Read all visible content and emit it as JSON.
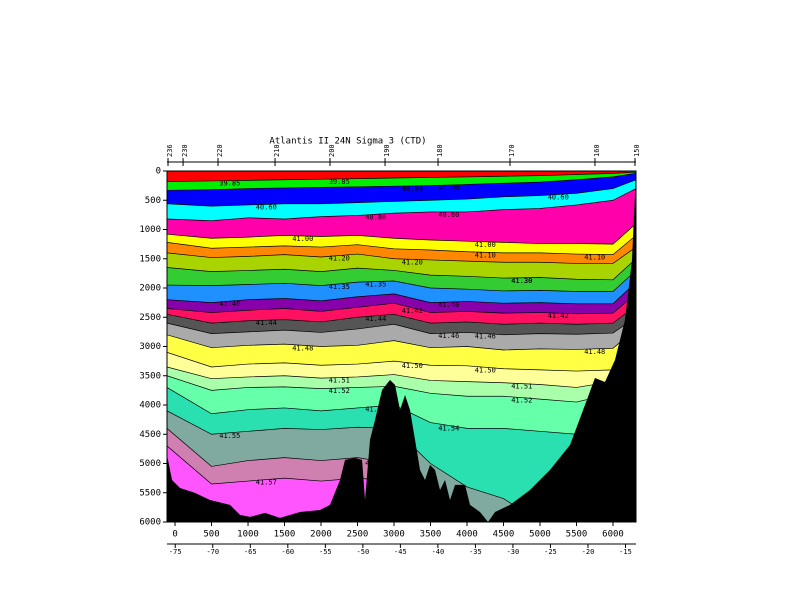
{
  "chart_data": {
    "type": "contour",
    "title": "Atlantis II 24N Sigma 3 (CTD)",
    "xlim": [
      -110,
      6315
    ],
    "xticks": [
      0,
      500,
      1000,
      1500,
      2000,
      2500,
      3000,
      3500,
      4000,
      4500,
      5000,
      5500,
      6000
    ],
    "ylim": [
      0,
      6000
    ],
    "yticks": [
      0,
      500,
      1000,
      1500,
      2000,
      2500,
      3000,
      3500,
      4000,
      4500,
      5000,
      5500,
      6000
    ],
    "y_inverted": true,
    "x2lim": [
      -76.1,
      -13.6
    ],
    "x2ticks": [
      -75,
      -70,
      -65,
      -60,
      -55,
      -50,
      -45,
      -40,
      -35,
      -30,
      -25,
      -20,
      -15
    ],
    "stations": {
      "x": [
        -96,
        110,
        589,
        1370,
        2123,
        2877,
        3603,
        4589,
        5753,
        6301
      ],
      "labels": [
        "236",
        "230",
        "220",
        "210",
        "200",
        "190",
        "180",
        "170",
        "160",
        "150"
      ]
    },
    "top_color": "#ff0000",
    "x": [
      -110,
      500,
      1000,
      1500,
      2000,
      2500,
      3000,
      3500,
      4000,
      4500,
      5000,
      5500,
      6000,
      6315
    ],
    "levels": [
      {
        "value": 39.85,
        "label": "39.85",
        "color": "#00ee00",
        "depths": [
          180,
          170,
          160,
          150,
          140,
          130,
          120,
          110,
          100,
          90,
          80,
          60,
          40,
          20
        ]
      },
      {
        "value": 40.0,
        "label": "40.00",
        "color": "#0000ff",
        "depths": [
          330,
          320,
          300,
          290,
          280,
          270,
          260,
          250,
          230,
          210,
          190,
          150,
          100,
          40
        ]
      },
      {
        "value": 40.6,
        "label": "40.60",
        "color": "#00ffff",
        "depths": [
          560,
          600,
          580,
          560,
          560,
          540,
          520,
          500,
          480,
          440,
          420,
          380,
          300,
          150
        ]
      },
      {
        "value": 40.8,
        "label": "40.80",
        "color": "#ff00aa",
        "depths": [
          820,
          850,
          800,
          820,
          780,
          760,
          720,
          700,
          700,
          660,
          640,
          580,
          500,
          300
        ]
      },
      {
        "value": 41.0,
        "label": "41.00",
        "color": "#ffff00",
        "depths": [
          1080,
          1150,
          1130,
          1100,
          1120,
          1100,
          1150,
          1180,
          1200,
          1220,
          1240,
          1240,
          1250,
          900
        ]
      },
      {
        "value": 41.1,
        "label": "41.10",
        "color": "#ff8800",
        "depths": [
          1220,
          1320,
          1300,
          1280,
          1300,
          1260,
          1330,
          1350,
          1380,
          1400,
          1400,
          1420,
          1430,
          1100
        ]
      },
      {
        "value": 41.2,
        "label": "41.20",
        "color": "#aad400",
        "depths": [
          1400,
          1480,
          1460,
          1430,
          1470,
          1420,
          1500,
          1520,
          1540,
          1560,
          1560,
          1580,
          1580,
          1300
        ]
      },
      {
        "value": 41.3,
        "label": "41.30",
        "color": "#33cc33",
        "depths": [
          1650,
          1720,
          1700,
          1680,
          1720,
          1660,
          1700,
          1780,
          1800,
          1830,
          1820,
          1850,
          1860,
          1500
        ]
      },
      {
        "value": 41.35,
        "label": "41.35",
        "color": "#1e90ff",
        "depths": [
          1950,
          1960,
          1940,
          1920,
          1960,
          1900,
          1880,
          2000,
          2020,
          2050,
          2040,
          2060,
          2060,
          1700
        ]
      },
      {
        "value": 41.4,
        "label": "41.40",
        "color": "#8800aa",
        "depths": [
          2200,
          2250,
          2200,
          2180,
          2220,
          2150,
          2100,
          2250,
          2230,
          2260,
          2250,
          2270,
          2270,
          1900
        ]
      },
      {
        "value": 41.42,
        "label": "41.42",
        "color": "#ff1060",
        "depths": [
          2350,
          2420,
          2380,
          2350,
          2400,
          2330,
          2260,
          2420,
          2400,
          2430,
          2420,
          2440,
          2430,
          2100
        ]
      },
      {
        "value": 41.44,
        "label": "41.44",
        "color": "#555555",
        "depths": [
          2450,
          2600,
          2560,
          2540,
          2580,
          2500,
          2450,
          2600,
          2580,
          2620,
          2600,
          2620,
          2600,
          2300
        ]
      },
      {
        "value": 41.46,
        "label": "41.46",
        "color": "#aaaaaa",
        "depths": [
          2600,
          2780,
          2750,
          2720,
          2760,
          2700,
          2620,
          2780,
          2760,
          2800,
          2780,
          2790,
          2770,
          2500
        ]
      },
      {
        "value": 41.48,
        "label": "41.48",
        "color": "#ffff44",
        "depths": [
          2800,
          3020,
          2980,
          2960,
          3000,
          2980,
          2900,
          3020,
          3000,
          3060,
          3040,
          3050,
          3030,
          2700
        ]
      },
      {
        "value": 41.5,
        "label": "41.50",
        "color": "#ffff99",
        "depths": [
          3100,
          3350,
          3300,
          3280,
          3320,
          3300,
          3250,
          3320,
          3330,
          3380,
          3400,
          3420,
          3400,
          3000
        ]
      },
      {
        "value": 41.51,
        "label": "41.51",
        "color": "#aaffaa",
        "depths": [
          3350,
          3550,
          3520,
          3500,
          3540,
          3520,
          3480,
          3580,
          3600,
          3620,
          3650,
          3700,
          3600,
          3200
        ]
      },
      {
        "value": 41.52,
        "label": "41.52",
        "color": "#66ffaa",
        "depths": [
          3500,
          3750,
          3700,
          3690,
          3720,
          3700,
          3680,
          3800,
          3850,
          3850,
          3900,
          3950,
          3800,
          3400
        ]
      },
      {
        "value": 41.54,
        "label": "41.54",
        "color": "#2ae0b0",
        "depths": [
          3700,
          4150,
          4080,
          4050,
          4100,
          4050,
          4000,
          4300,
          4400,
          4400,
          4450,
          4500,
          4000,
          3600
        ]
      },
      {
        "value": 41.55,
        "label": "41.55",
        "color": "#80aaa0",
        "depths": [
          4100,
          4500,
          4450,
          4400,
          4420,
          4380,
          4400,
          5000,
          5400,
          5600,
          6000,
          6000,
          6000,
          6000
        ]
      },
      {
        "value": 41.56,
        "label": "41.56",
        "color": "#d080b0",
        "depths": [
          4400,
          5050,
          4950,
          4900,
          4950,
          4900,
          5000,
          6000,
          6000,
          6000,
          6000,
          6000,
          6000,
          6000
        ]
      },
      {
        "value": 41.57,
        "label": "41.57",
        "color": "#ff55ff",
        "depths": [
          4700,
          5350,
          5300,
          5250,
          5300,
          5250,
          5300,
          6000,
          6000,
          6000,
          6000,
          6000,
          6000,
          6000
        ]
      }
    ],
    "bottom": {
      "color": "#000000",
      "x": [
        -110,
        -41,
        68,
        274,
        479,
        753,
        890,
        1027,
        1233,
        1438,
        1712,
        1986,
        2123,
        2260,
        2329,
        2466,
        2562,
        2603,
        2671,
        2740,
        2836,
        2945,
        3014,
        3082,
        3151,
        3219,
        3288,
        3356,
        3425,
        3493,
        3562,
        3630,
        3699,
        3767,
        3836,
        3973,
        4041,
        4178,
        4288,
        4384,
        4589,
        4863,
        5137,
        5411,
        5616,
        5753,
        5890,
        6027,
        6164,
        6260,
        6315
      ],
      "depth": [
        4854,
        5281,
        5418,
        5503,
        5623,
        5708,
        5879,
        5913,
        5845,
        5930,
        5828,
        5794,
        5708,
        5281,
        4939,
        4905,
        4939,
        5623,
        4597,
        4255,
        3743,
        3572,
        3657,
        4085,
        3828,
        4085,
        4597,
        5110,
        5281,
        5024,
        5110,
        5452,
        5281,
        5623,
        5366,
        5366,
        5708,
        5828,
        6000,
        5828,
        5708,
        5452,
        5110,
        4683,
        4000,
        3538,
        3606,
        3230,
        2546,
        1521,
        0
      ]
    }
  }
}
